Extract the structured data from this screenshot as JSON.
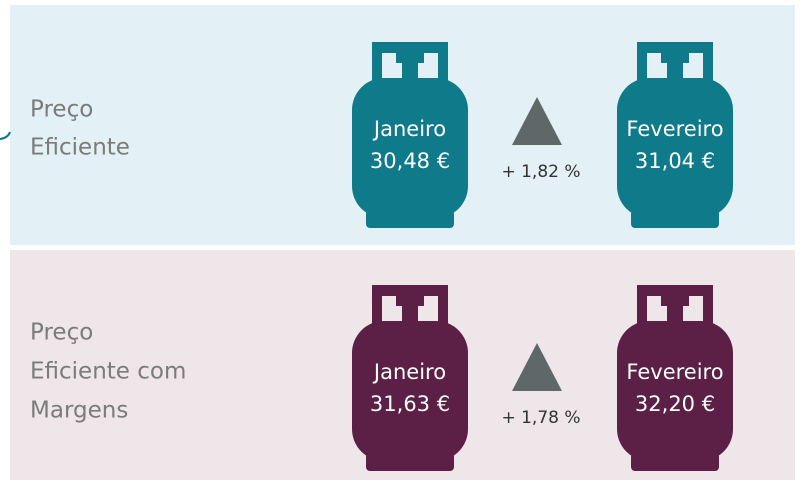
{
  "rows": [
    {
      "label": [
        "Preço",
        "Eficiente"
      ],
      "color": "#0f7a8a",
      "background": "#e3f1f6",
      "from": {
        "month": "Janeiro",
        "price": "30,48 €"
      },
      "change": "+ 1,82 %",
      "to": {
        "month": "Fevereiro",
        "price": "31,04 €"
      }
    },
    {
      "label": [
        "Preço",
        "Eficiente com",
        "Margens"
      ],
      "color": "#5c1f45",
      "background": "#efe6ea",
      "from": {
        "month": "Janeiro",
        "price": "31,63 €"
      },
      "change": "+ 1,78 %",
      "to": {
        "month": "Fevereiro",
        "price": "32,20 €"
      }
    }
  ]
}
